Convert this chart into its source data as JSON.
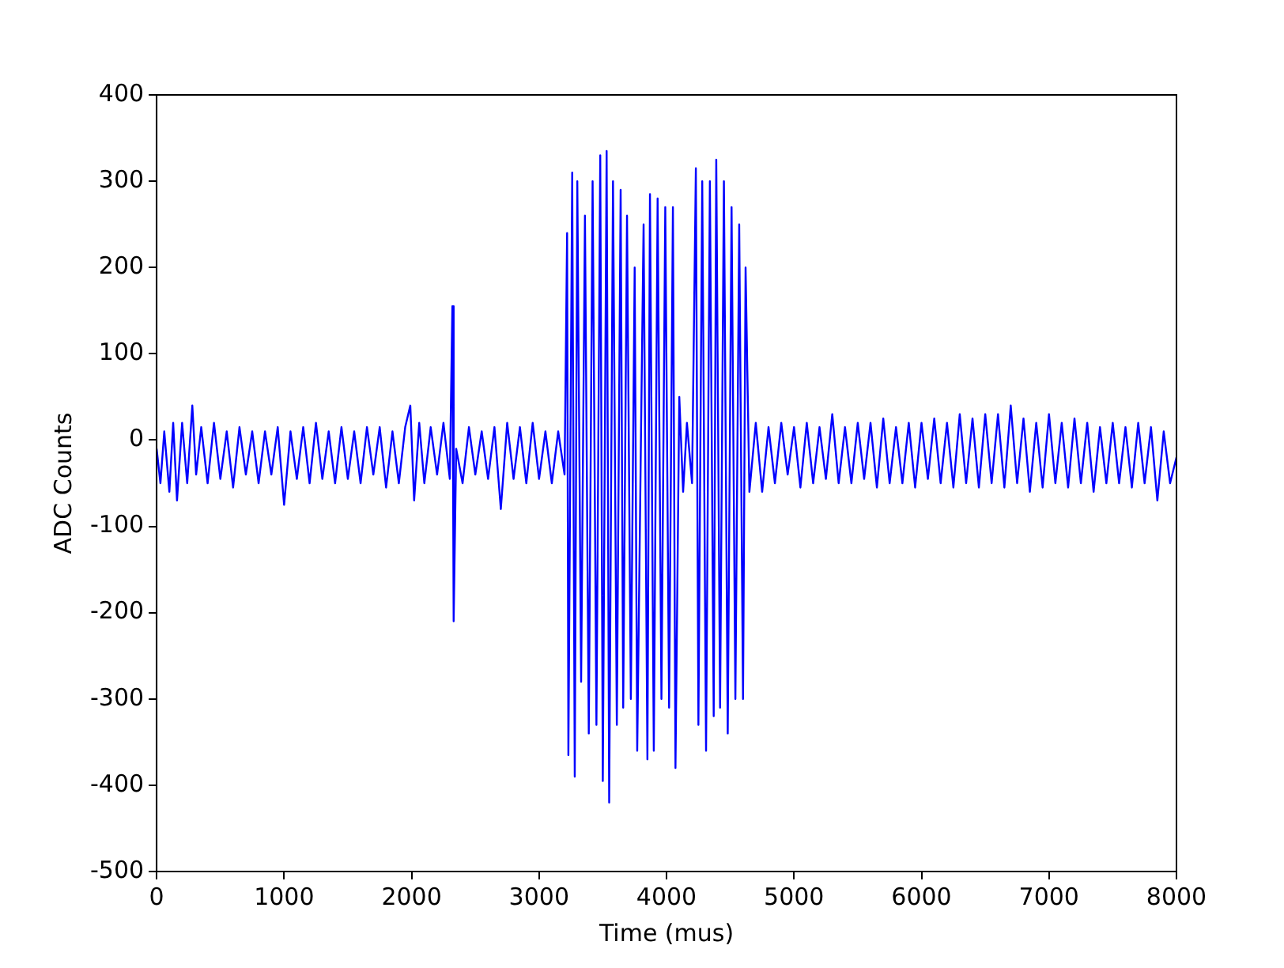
{
  "chart_data": {
    "type": "line",
    "xlabel": "Time (mus)",
    "ylabel": "ADC Counts",
    "xlim": [
      0,
      8000
    ],
    "xticks": [
      0,
      1000,
      2000,
      3000,
      4000,
      5000,
      6000,
      7000,
      8000
    ],
    "ylim": [
      -500,
      400
    ],
    "yticks": [
      -500,
      -400,
      -300,
      -200,
      -100,
      0,
      100,
      200,
      300,
      400
    ],
    "grid": false,
    "legend": false,
    "marker": "none",
    "line_style": "solid",
    "series": [
      {
        "color": "#0000ff",
        "x": [
          0,
          30,
          60,
          100,
          130,
          160,
          200,
          240,
          280,
          310,
          350,
          400,
          450,
          500,
          550,
          600,
          650,
          700,
          750,
          800,
          850,
          900,
          950,
          1000,
          1050,
          1100,
          1150,
          1200,
          1250,
          1300,
          1350,
          1400,
          1450,
          1500,
          1550,
          1600,
          1650,
          1700,
          1750,
          1800,
          1850,
          1900,
          1950,
          1990,
          2020,
          2060,
          2100,
          2150,
          2200,
          2250,
          2300,
          2320,
          2330,
          2350,
          2400,
          2450,
          2500,
          2550,
          2600,
          2650,
          2700,
          2750,
          2800,
          2850,
          2900,
          2950,
          3000,
          3050,
          3100,
          3150,
          3200,
          3220,
          3230,
          3260,
          3280,
          3300,
          3330,
          3360,
          3390,
          3420,
          3450,
          3480,
          3500,
          3530,
          3550,
          3580,
          3610,
          3640,
          3660,
          3690,
          3720,
          3750,
          3770,
          3800,
          3820,
          3850,
          3870,
          3900,
          3930,
          3960,
          3990,
          4020,
          4050,
          4070,
          4100,
          4130,
          4160,
          4200,
          4230,
          4250,
          4280,
          4310,
          4340,
          4370,
          4390,
          4420,
          4450,
          4480,
          4510,
          4540,
          4570,
          4600,
          4620,
          4650,
          4700,
          4750,
          4800,
          4850,
          4900,
          4950,
          5000,
          5050,
          5100,
          5150,
          5200,
          5250,
          5300,
          5350,
          5400,
          5450,
          5500,
          5550,
          5600,
          5650,
          5700,
          5750,
          5800,
          5850,
          5900,
          5950,
          6000,
          6050,
          6100,
          6150,
          6200,
          6250,
          6300,
          6350,
          6400,
          6450,
          6500,
          6550,
          6600,
          6650,
          6700,
          6750,
          6800,
          6850,
          6900,
          6950,
          7000,
          7050,
          7100,
          7150,
          7200,
          7250,
          7300,
          7350,
          7400,
          7450,
          7500,
          7550,
          7600,
          7650,
          7700,
          7750,
          7800,
          7850,
          7900,
          7950,
          8000
        ],
        "values": [
          -10,
          -50,
          10,
          -60,
          20,
          -70,
          20,
          -50,
          40,
          -40,
          15,
          -50,
          20,
          -45,
          10,
          -55,
          15,
          -40,
          10,
          -50,
          10,
          -40,
          15,
          -75,
          10,
          -45,
          15,
          -50,
          20,
          -45,
          10,
          -50,
          15,
          -45,
          10,
          -50,
          15,
          -40,
          15,
          -55,
          10,
          -50,
          15,
          40,
          -70,
          20,
          -50,
          15,
          -40,
          20,
          -45,
          155,
          -210,
          -10,
          -50,
          15,
          -40,
          10,
          -45,
          15,
          -80,
          20,
          -45,
          15,
          -50,
          20,
          -45,
          10,
          -50,
          10,
          -40,
          240,
          -365,
          310,
          -390,
          300,
          -280,
          260,
          -340,
          300,
          -330,
          330,
          -395,
          335,
          -420,
          300,
          -330,
          290,
          -310,
          260,
          -300,
          200,
          -360,
          10,
          250,
          -370,
          285,
          -360,
          280,
          -300,
          270,
          -310,
          270,
          -380,
          50,
          -60,
          20,
          -50,
          315,
          -330,
          300,
          -360,
          300,
          -320,
          325,
          -310,
          300,
          -340,
          270,
          -300,
          250,
          -300,
          200,
          -60,
          20,
          -60,
          15,
          -50,
          20,
          -40,
          15,
          -55,
          20,
          -50,
          15,
          -45,
          30,
          -50,
          15,
          -50,
          20,
          -45,
          20,
          -55,
          25,
          -50,
          15,
          -50,
          20,
          -55,
          20,
          -45,
          25,
          -50,
          20,
          -55,
          30,
          -50,
          25,
          -55,
          30,
          -50,
          30,
          -55,
          40,
          -50,
          25,
          -60,
          20,
          -55,
          30,
          -50,
          20,
          -55,
          25,
          -50,
          20,
          -60,
          15,
          -50,
          20,
          -50,
          15,
          -55,
          20,
          -50,
          15,
          -70,
          10,
          -50,
          -20
        ]
      }
    ]
  }
}
